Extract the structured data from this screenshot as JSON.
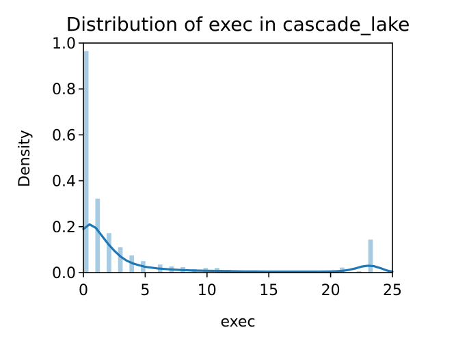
{
  "chart_data": {
    "type": "bar",
    "title": "Distribution of exec in cascade_lake",
    "xlabel": "exec",
    "ylabel": "Density",
    "xlim": [
      0,
      25
    ],
    "ylim": [
      0,
      1.0
    ],
    "xticks": [
      "0",
      "5",
      "10",
      "15",
      "20",
      "25"
    ],
    "yticks": [
      "0.0",
      "0.2",
      "0.4",
      "0.6",
      "0.8",
      "1.0"
    ],
    "grid": false,
    "colors": {
      "bars": "#a6cbe3",
      "kde": "#1f77b4"
    },
    "histogram": {
      "bin_edges": [
        0.0,
        0.46,
        0.92,
        1.38,
        1.84,
        2.3,
        2.76,
        3.22,
        3.68,
        4.14,
        4.6,
        5.06,
        5.52,
        5.98,
        6.44,
        6.9,
        7.36,
        7.82,
        8.28,
        8.74,
        9.2,
        9.66,
        10.12,
        10.58,
        11.04,
        11.5,
        11.96,
        12.42,
        12.88,
        13.34,
        13.8,
        14.26,
        14.72,
        15.18,
        15.64,
        16.1,
        16.56,
        17.02,
        17.48,
        17.94,
        18.4,
        18.86,
        19.32,
        19.78,
        20.24,
        20.7,
        21.16,
        21.62,
        22.08,
        22.54,
        23.0,
        23.46,
        23.92,
        24.38,
        24.84
      ],
      "density": [
        0.965,
        0.0,
        0.322,
        0.0,
        0.172,
        0.0,
        0.11,
        0.0,
        0.075,
        0.0,
        0.05,
        0.0,
        0.0,
        0.035,
        0.0,
        0.027,
        0.0,
        0.024,
        0.0,
        0.015,
        0.0,
        0.02,
        0.0,
        0.02,
        0.0,
        0.012,
        0.0,
        0.008,
        0.0,
        0.006,
        0.0,
        0.006,
        0.0,
        0.005,
        0.0,
        0.006,
        0.0,
        0.006,
        0.0,
        0.005,
        0.0,
        0.008,
        0.0,
        0.006,
        0.0,
        0.022,
        0.0,
        0.0,
        0.006,
        0.0,
        0.144,
        0.0,
        0.0,
        0.0
      ]
    },
    "kde": {
      "x": [
        0,
        0.5,
        1,
        1.5,
        2,
        2.5,
        3,
        3.5,
        4,
        4.5,
        5,
        6,
        7,
        8,
        9,
        10,
        11,
        12,
        13,
        14,
        15,
        16,
        17,
        18,
        19,
        20,
        20.5,
        21,
        21.5,
        22,
        22.5,
        23,
        23.5,
        24,
        24.5,
        25
      ],
      "y": [
        0.19,
        0.21,
        0.195,
        0.16,
        0.125,
        0.095,
        0.07,
        0.052,
        0.04,
        0.032,
        0.025,
        0.018,
        0.014,
        0.011,
        0.009,
        0.008,
        0.007,
        0.006,
        0.005,
        0.005,
        0.004,
        0.004,
        0.004,
        0.004,
        0.004,
        0.005,
        0.006,
        0.008,
        0.012,
        0.018,
        0.026,
        0.03,
        0.028,
        0.02,
        0.01,
        0.004
      ]
    }
  }
}
